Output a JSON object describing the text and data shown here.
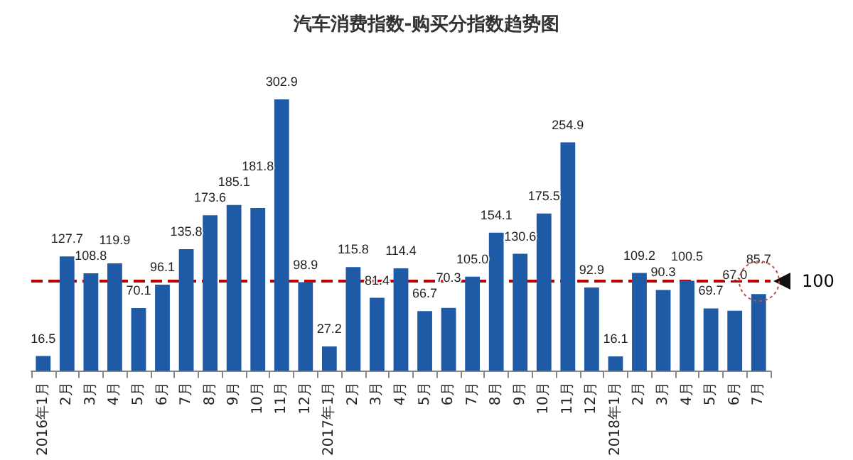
{
  "chart_data": {
    "type": "bar",
    "title": "汽车消费指数-购买分指数趋势图",
    "categories": [
      "2016年1月",
      "2月",
      "3月",
      "4月",
      "5月",
      "6月",
      "7月",
      "8月",
      "9月",
      "10月",
      "11月",
      "12月",
      "2017年1月",
      "2月",
      "3月",
      "4月",
      "5月",
      "6月",
      "7月",
      "8月",
      "9月",
      "10月",
      "11月",
      "12月",
      "2018年1月",
      "2月",
      "3月",
      "4月",
      "5月",
      "6月",
      "7月"
    ],
    "values": [
      16.5,
      127.7,
      108.8,
      119.9,
      70.1,
      96.1,
      135.8,
      173.6,
      185.1,
      181.8,
      302.9,
      98.9,
      27.2,
      115.8,
      81.4,
      114.4,
      66.7,
      70.3,
      105.0,
      154.1,
      130.6,
      175.5,
      254.9,
      92.9,
      16.1,
      109.2,
      90.3,
      100.5,
      69.7,
      67.0,
      85.7
    ],
    "color": "#1f5aa6",
    "value_labels": [
      "16.5",
      "127.7",
      "108.8",
      "119.9",
      "70.1",
      "96.1",
      "135.8",
      "173.6",
      "185.1",
      "181.8",
      "302.9",
      "98.9",
      "27.2",
      "115.8",
      "81.4",
      "114.4",
      "66.7",
      "70.3",
      "105.0",
      "154.1",
      "130.6",
      "175.5",
      "254.9",
      "92.9",
      "16.1",
      "109.2",
      "90.3",
      "100.5",
      "69.7",
      "67.0",
      "85.7"
    ],
    "ref_lines": [
      {
        "axis": "y",
        "value": 100,
        "label": "100",
        "color": "#c00000",
        "line_style": "dashed"
      }
    ],
    "grid": false
  }
}
